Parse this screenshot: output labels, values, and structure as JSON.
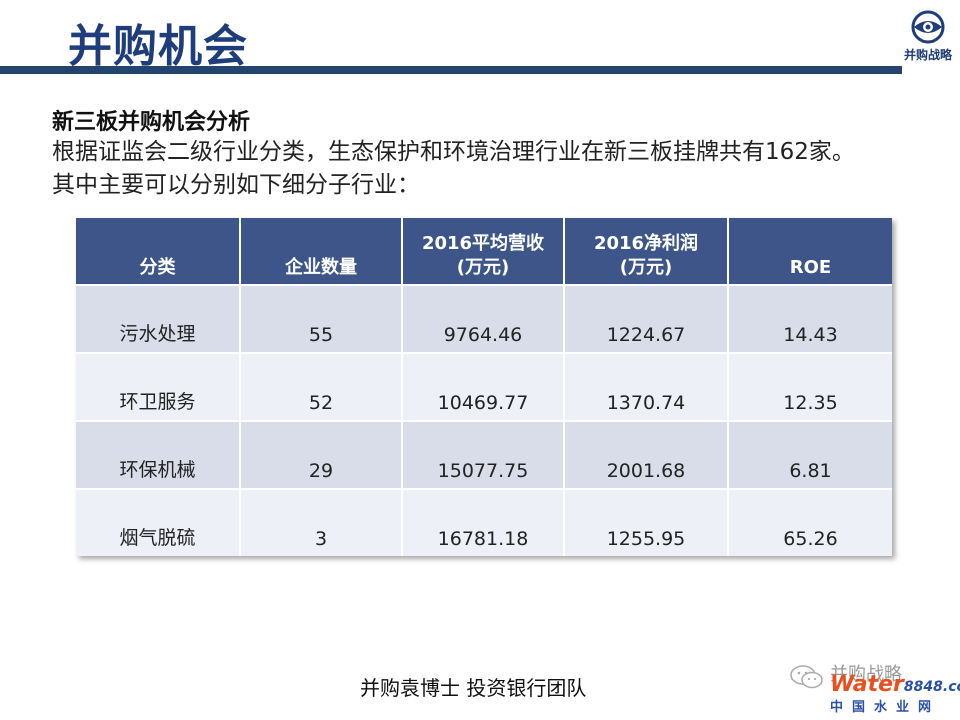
{
  "slide": {
    "title": "并购机会",
    "logo_text": "并购战略",
    "heading": "新三板并购机会分析",
    "body": "根据证监会二级行业分类，生态保护和环境治理行业在新三板挂牌共有162家。其中主要可以分别如下细分子行业：",
    "footer": "并购袁博士 投资银行团队"
  },
  "table": {
    "headers": [
      "分类",
      "企业数量",
      "2016平均营收\n(万元)",
      "2016净利润\n(万元)",
      "ROE"
    ],
    "rows": [
      [
        "污水处理",
        "55",
        "9764.46",
        "1224.67",
        "14.43"
      ],
      [
        "环卫服务",
        "52",
        "10469.77",
        "1370.74",
        "12.35"
      ],
      [
        "环保机械",
        "29",
        "15077.75",
        "2001.68",
        "6.81"
      ],
      [
        "烟气脱硫",
        "3",
        "16781.18",
        "1255.95",
        "65.26"
      ]
    ]
  },
  "watermark": {
    "account": "并购战略",
    "site_brand": "Water",
    "site_number": "8848",
    "site_tld": ".com",
    "site_cn": "中国水业网"
  },
  "colors": {
    "title": "#1f3d7a",
    "title_bar": "#23446f",
    "table_header": "#3d5589",
    "row_odd": "#d9dde9",
    "row_even": "#edf0f6"
  },
  "icons": [
    "eye-logo-icon",
    "wechat-icon"
  ]
}
